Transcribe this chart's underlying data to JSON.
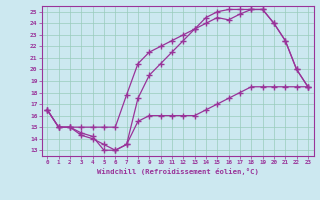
{
  "xlabel": "Windchill (Refroidissement éolien,°C)",
  "bg_color": "#cce8f0",
  "grid_color": "#99ccbb",
  "line_color": "#993399",
  "spine_color": "#993399",
  "xlim": [
    -0.5,
    23.5
  ],
  "ylim": [
    12.5,
    25.5
  ],
  "xticks": [
    0,
    1,
    2,
    3,
    4,
    5,
    6,
    7,
    8,
    9,
    10,
    11,
    12,
    13,
    14,
    15,
    16,
    17,
    18,
    19,
    20,
    21,
    22,
    23
  ],
  "yticks": [
    13,
    14,
    15,
    16,
    17,
    18,
    19,
    20,
    21,
    22,
    23,
    24,
    25
  ],
  "line1_x": [
    0,
    1,
    2,
    3,
    4,
    5,
    6,
    7,
    8,
    9,
    10,
    11,
    12,
    13,
    14,
    15,
    16,
    17,
    18,
    19,
    20,
    21,
    22,
    23
  ],
  "line1_y": [
    16.5,
    15.0,
    15.0,
    15.0,
    15.0,
    15.0,
    15.0,
    17.8,
    20.5,
    21.5,
    22.0,
    22.5,
    23.0,
    23.5,
    24.0,
    24.5,
    24.3,
    24.8,
    25.2,
    25.2,
    24.0,
    22.5,
    20.0,
    18.5
  ],
  "line2_x": [
    0,
    1,
    2,
    3,
    4,
    5,
    6,
    7,
    8,
    9,
    10,
    11,
    12,
    13,
    14,
    15,
    16,
    17,
    18,
    19,
    20,
    21,
    22,
    23
  ],
  "line2_y": [
    16.5,
    15.0,
    15.0,
    14.5,
    14.2,
    13.0,
    13.0,
    13.5,
    17.5,
    19.5,
    20.5,
    21.5,
    22.5,
    23.5,
    24.5,
    25.0,
    25.2,
    25.2,
    25.2,
    25.2,
    24.0,
    22.5,
    20.0,
    18.5
  ],
  "line3_x": [
    0,
    1,
    2,
    3,
    4,
    5,
    6,
    7,
    8,
    9,
    10,
    11,
    12,
    13,
    14,
    15,
    16,
    17,
    18,
    19,
    20,
    21,
    22,
    23
  ],
  "line3_y": [
    16.5,
    15.0,
    15.0,
    14.3,
    14.0,
    13.5,
    13.0,
    13.5,
    15.5,
    16.0,
    16.0,
    16.0,
    16.0,
    16.0,
    16.5,
    17.0,
    17.5,
    18.0,
    18.5,
    18.5,
    18.5,
    18.5,
    18.5,
    18.5
  ]
}
